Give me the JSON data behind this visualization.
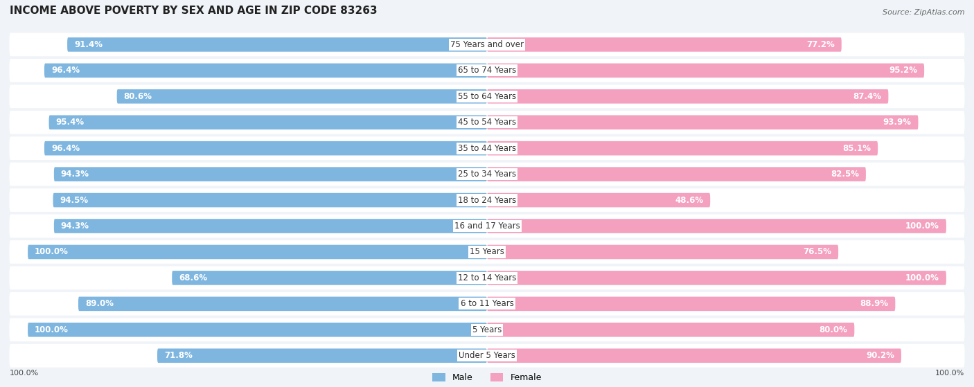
{
  "title": "INCOME ABOVE POVERTY BY SEX AND AGE IN ZIP CODE 83263",
  "source": "Source: ZipAtlas.com",
  "categories": [
    "Under 5 Years",
    "5 Years",
    "6 to 11 Years",
    "12 to 14 Years",
    "15 Years",
    "16 and 17 Years",
    "18 to 24 Years",
    "25 to 34 Years",
    "35 to 44 Years",
    "45 to 54 Years",
    "55 to 64 Years",
    "65 to 74 Years",
    "75 Years and over"
  ],
  "male_values": [
    71.8,
    100.0,
    89.0,
    68.6,
    100.0,
    94.3,
    94.5,
    94.3,
    96.4,
    95.4,
    80.6,
    96.4,
    91.4
  ],
  "female_values": [
    90.2,
    80.0,
    88.9,
    100.0,
    76.5,
    100.0,
    48.6,
    82.5,
    85.1,
    93.9,
    87.4,
    95.2,
    77.2
  ],
  "male_color": "#7EB6E0",
  "male_color_dark": "#5A9FD4",
  "female_color": "#F4A0BF",
  "female_color_dark": "#F07AAA",
  "bg_color": "#f0f4f8",
  "bar_bg_color": "#ffffff",
  "label_fontsize": 8.5,
  "title_fontsize": 11,
  "x_axis_label": "100.0%",
  "legend_male": "Male",
  "legend_female": "Female",
  "max_value": 100.0
}
